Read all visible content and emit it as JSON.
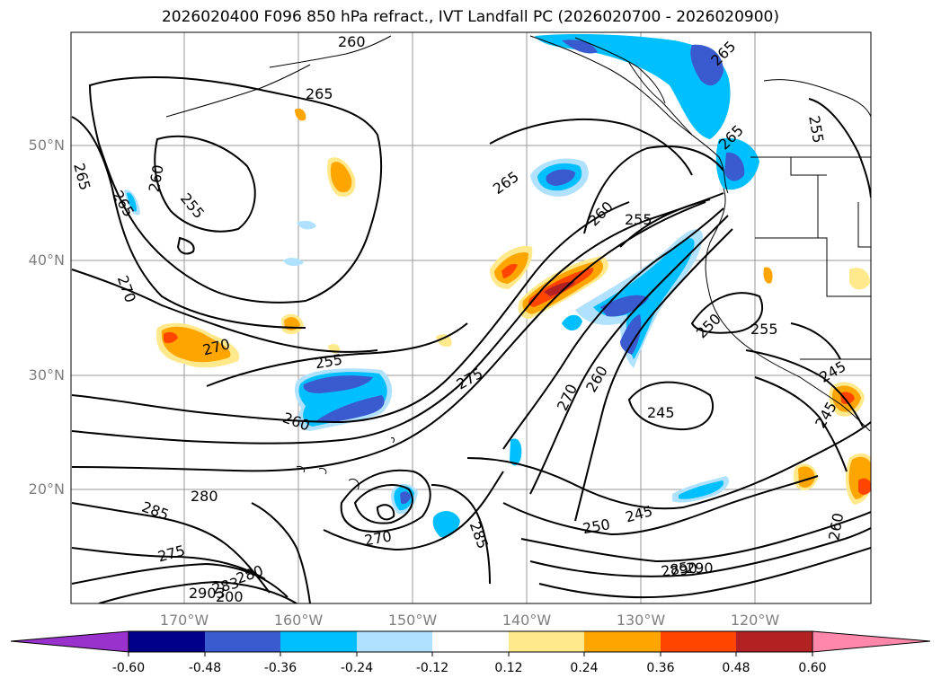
{
  "title": "2026020400 F096 850 hPa refract., IVT Landfall PC (2026020700 - 2026020900)",
  "axes": {
    "lat_labels": [
      "50°N",
      "40°N",
      "30°N",
      "20°N"
    ],
    "lon_labels": [
      "170°W",
      "160°W",
      "150°W",
      "140°W",
      "130°W",
      "120°W"
    ]
  },
  "contour_labels": [
    "260",
    "265",
    "265",
    "265",
    "255",
    "260",
    "265",
    "255",
    "270",
    "270",
    "275",
    "265",
    "260",
    "255",
    "255",
    "260",
    "265",
    "270",
    "250",
    "255",
    "245",
    "245",
    "245",
    "260",
    "280",
    "285",
    "275",
    "283",
    "290",
    "280",
    "2903",
    "200",
    "270",
    "285",
    "250",
    "245",
    "285",
    "290",
    "260"
  ],
  "colorbar": {
    "ticks": [
      "-0.60",
      "-0.48",
      "-0.36",
      "-0.24",
      "-0.12",
      "0.12",
      "0.24",
      "0.36",
      "0.48",
      "0.60"
    ],
    "colors": [
      "#9932cc",
      "#00008b",
      "#3a5bd0",
      "#00bfff",
      "#b0e2ff",
      "#ffffff",
      "#ffe98c",
      "#ffa500",
      "#ff4500",
      "#b22222",
      "#ff88aa"
    ]
  }
}
